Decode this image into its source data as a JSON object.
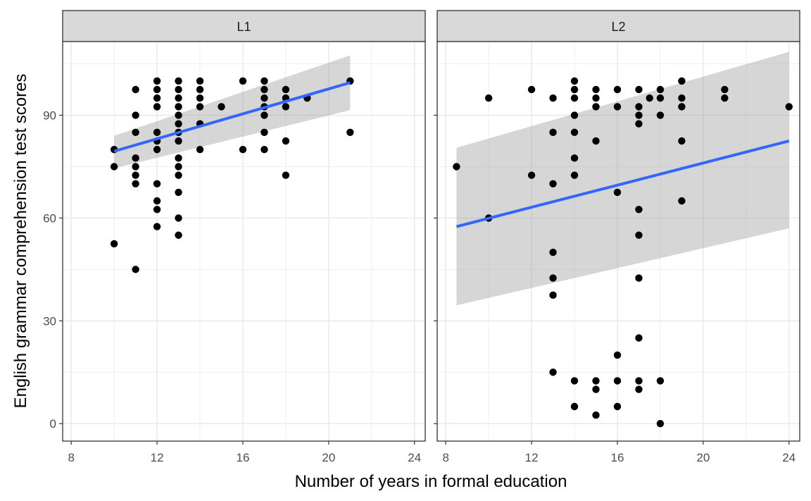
{
  "chart_data": {
    "type": "scatter",
    "xlabel": "Number of years in formal education",
    "ylabel": "English grammar comprehension test scores",
    "xlim": [
      7.6,
      24.5
    ],
    "ylim": [
      -5.1,
      111.5
    ],
    "x_ticks": [
      8,
      12,
      16,
      20,
      24
    ],
    "y_ticks": [
      0,
      30,
      60,
      90
    ],
    "grid": true,
    "colors": {
      "point": "#000000",
      "fit_line": "#3366ff",
      "ribbon": "#999999",
      "strip_fill": "#d9d9d9",
      "grid": "#ebebeb"
    },
    "panels": [
      {
        "label": "L1",
        "points": [
          [
            10,
            80
          ],
          [
            10,
            75
          ],
          [
            10,
            52.5
          ],
          [
            11,
            97.5
          ],
          [
            11,
            90
          ],
          [
            11,
            85
          ],
          [
            11,
            77.5
          ],
          [
            11,
            75
          ],
          [
            11,
            72.5
          ],
          [
            11,
            70
          ],
          [
            11,
            45
          ],
          [
            12,
            100
          ],
          [
            12,
            97.5
          ],
          [
            12,
            95
          ],
          [
            12,
            92.5
          ],
          [
            12,
            85
          ],
          [
            12,
            82.5
          ],
          [
            12,
            80
          ],
          [
            12,
            70
          ],
          [
            12,
            65
          ],
          [
            12,
            62.5
          ],
          [
            12,
            57.5
          ],
          [
            13,
            100
          ],
          [
            13,
            97.5
          ],
          [
            13,
            95
          ],
          [
            13,
            92.5
          ],
          [
            13,
            90
          ],
          [
            13,
            87.5
          ],
          [
            13,
            85
          ],
          [
            13,
            82.5
          ],
          [
            13,
            77.5
          ],
          [
            13,
            75
          ],
          [
            13,
            72.5
          ],
          [
            13,
            67.5
          ],
          [
            13,
            60
          ],
          [
            13,
            55
          ],
          [
            14,
            100
          ],
          [
            14,
            97.5
          ],
          [
            14,
            95
          ],
          [
            14,
            92.5
          ],
          [
            14,
            87.5
          ],
          [
            14,
            80
          ],
          [
            15,
            92.5
          ],
          [
            16,
            100
          ],
          [
            16,
            80
          ],
          [
            17,
            100
          ],
          [
            17,
            97.5
          ],
          [
            17,
            95
          ],
          [
            17,
            92.5
          ],
          [
            17,
            90
          ],
          [
            17,
            85
          ],
          [
            17,
            80
          ],
          [
            18,
            97.5
          ],
          [
            18,
            95
          ],
          [
            18,
            92.5
          ],
          [
            18,
            82.5
          ],
          [
            18,
            72.5
          ],
          [
            19,
            95
          ],
          [
            21,
            100
          ],
          [
            21,
            85
          ]
        ],
        "fit": {
          "x": [
            10,
            21
          ],
          "y": [
            79.5,
            99.5
          ],
          "lower": [
            74.5,
            91.5
          ],
          "upper": [
            84,
            107.5
          ]
        }
      },
      {
        "label": "L2",
        "points": [
          [
            8.5,
            75
          ],
          [
            10,
            95
          ],
          [
            10,
            60
          ],
          [
            12,
            97.5
          ],
          [
            12,
            72.5
          ],
          [
            13,
            95
          ],
          [
            13,
            85
          ],
          [
            13,
            70
          ],
          [
            13,
            50
          ],
          [
            13,
            42.5
          ],
          [
            13,
            37.5
          ],
          [
            13,
            15
          ],
          [
            14,
            100
          ],
          [
            14,
            97.5
          ],
          [
            14,
            95
          ],
          [
            14,
            90
          ],
          [
            14,
            85
          ],
          [
            14,
            77.5
          ],
          [
            14,
            72.5
          ],
          [
            14,
            12.5
          ],
          [
            14,
            5
          ],
          [
            15,
            97.5
          ],
          [
            15,
            95
          ],
          [
            15,
            92.5
          ],
          [
            15,
            82.5
          ],
          [
            15,
            12.5
          ],
          [
            15,
            10
          ],
          [
            15,
            2.5
          ],
          [
            16,
            97.5
          ],
          [
            16,
            92.5
          ],
          [
            16,
            67.5
          ],
          [
            16,
            20
          ],
          [
            16,
            12.5
          ],
          [
            16,
            5
          ],
          [
            17,
            97.5
          ],
          [
            17,
            92.5
          ],
          [
            17,
            90
          ],
          [
            17,
            87.5
          ],
          [
            17,
            62.5
          ],
          [
            17,
            55
          ],
          [
            17,
            42.5
          ],
          [
            17,
            25
          ],
          [
            17,
            12.5
          ],
          [
            17,
            10
          ],
          [
            17.5,
            95
          ],
          [
            18,
            97.5
          ],
          [
            18,
            95
          ],
          [
            18,
            90
          ],
          [
            18,
            12.5
          ],
          [
            18,
            0
          ],
          [
            19,
            100
          ],
          [
            19,
            95
          ],
          [
            19,
            92.5
          ],
          [
            19,
            82.5
          ],
          [
            19,
            65
          ],
          [
            21,
            97.5
          ],
          [
            21,
            95
          ],
          [
            24,
            92.5
          ]
        ],
        "fit": {
          "x": [
            8.5,
            24
          ],
          "y": [
            57.5,
            82.5
          ],
          "lower": [
            34.5,
            57
          ],
          "upper": [
            80.5,
            108.5
          ]
        }
      }
    ]
  }
}
